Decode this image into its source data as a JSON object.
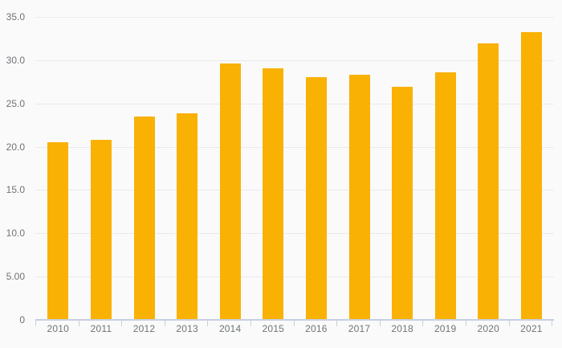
{
  "chart_data": {
    "type": "bar",
    "title": "",
    "xlabel": "",
    "ylabel": "",
    "categories": [
      "2010",
      "2011",
      "2012",
      "2013",
      "2014",
      "2015",
      "2016",
      "2017",
      "2018",
      "2019",
      "2020",
      "2021"
    ],
    "values": [
      20.5,
      20.8,
      23.5,
      23.9,
      29.6,
      29.1,
      28.0,
      28.3,
      26.9,
      28.6,
      31.9,
      33.2
    ],
    "ylim": [
      0,
      35
    ],
    "ytick_interval": 5,
    "yticks": [
      {
        "value": 0,
        "label": "0"
      },
      {
        "value": 5,
        "label": "5.00"
      },
      {
        "value": 10,
        "label": "10.0"
      },
      {
        "value": 15,
        "label": "15.0"
      },
      {
        "value": 20,
        "label": "20.0"
      },
      {
        "value": 25,
        "label": "25.0"
      },
      {
        "value": 30,
        "label": "30.0"
      },
      {
        "value": 35,
        "label": "35.0"
      }
    ],
    "grid": true,
    "legend": false,
    "colors": {
      "bar": "#f9b104",
      "background": "#fafafa",
      "gridline": "#eaeaea",
      "axis": "#c6d0e2",
      "text": "#6f7377"
    }
  }
}
